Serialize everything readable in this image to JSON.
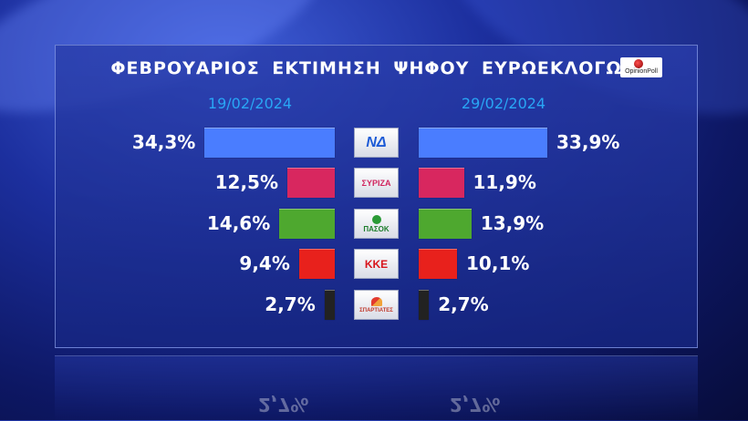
{
  "title": "ΦΕΒΡΟΥΑΡΙΟΣ ΕΚΤΙΜΗΣΗ ΨΗΦΟΥ ΕΥΡΩΕΚΛΟΓΩΝ",
  "logo_text": "OpinionPoll",
  "colors": {
    "nd": "#4a7dff",
    "syriza": "#d8275f",
    "pasok": "#4ea82f",
    "kke": "#e8211c",
    "sp": "#222222",
    "date": "#29a6f5"
  },
  "chart_data": {
    "type": "bar",
    "title": "ΦΕΒΡΟΥΑΡΙΟΣ ΕΚΤΙΜΗΣΗ ΨΗΦΟΥ ΕΥΡΩΕΚΛΟΓΩΝ",
    "categories": [
      "ΝΔ",
      "ΣΥΡΙΖΑ",
      "ΠΑΣΟΚ",
      "ΚΚΕ",
      "ΣΠΑΡΤΙΑΤΕΣ"
    ],
    "series": [
      {
        "name": "19/02/2024",
        "values": [
          34.3,
          12.5,
          14.6,
          9.4,
          2.7
        ],
        "labels": [
          "34,3%",
          "12,5%",
          "14,6%",
          "9,4%",
          "2,7%"
        ]
      },
      {
        "name": "29/02/2024",
        "values": [
          33.9,
          11.9,
          13.9,
          10.1,
          2.7
        ],
        "labels": [
          "33,9%",
          "11,9%",
          "13,9%",
          "10,1%",
          "2,7%"
        ]
      }
    ],
    "party_logo_text": [
      "ΝΔ",
      "ΣΥΡΙΖΑ",
      "ΠΑΣΟΚ",
      "ΚΚΕ",
      "ΣΠΑΡΤΙΑΤΕΣ"
    ]
  }
}
